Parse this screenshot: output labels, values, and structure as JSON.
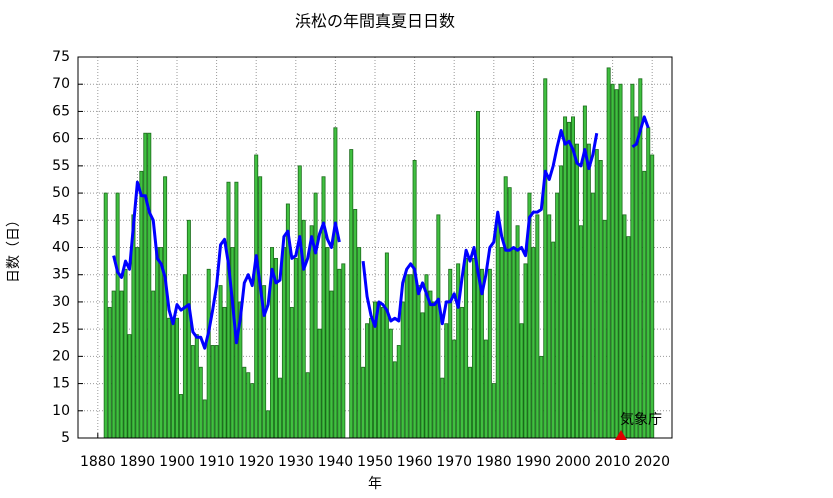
{
  "chart_data": {
    "type": "bar_line",
    "title": "浜松の年間真夏日日数",
    "xlabel": "年",
    "ylabel": "日数（日）",
    "annotation": "気象庁",
    "x": [
      1882,
      1883,
      1884,
      1885,
      1886,
      1887,
      1888,
      1889,
      1890,
      1891,
      1892,
      1893,
      1894,
      1895,
      1896,
      1897,
      1898,
      1899,
      1900,
      1901,
      1902,
      1903,
      1904,
      1905,
      1906,
      1907,
      1908,
      1909,
      1910,
      1911,
      1912,
      1913,
      1914,
      1915,
      1916,
      1917,
      1918,
      1919,
      1920,
      1921,
      1922,
      1923,
      1924,
      1925,
      1926,
      1927,
      1928,
      1929,
      1930,
      1931,
      1932,
      1933,
      1934,
      1935,
      1936,
      1937,
      1938,
      1939,
      1940,
      1941,
      1942,
      1943,
      1944,
      1945,
      1946,
      1947,
      1948,
      1949,
      1950,
      1951,
      1952,
      1953,
      1954,
      1955,
      1956,
      1957,
      1958,
      1959,
      1960,
      1961,
      1962,
      1963,
      1964,
      1965,
      1966,
      1967,
      1968,
      1969,
      1970,
      1971,
      1972,
      1973,
      1974,
      1975,
      1976,
      1977,
      1978,
      1979,
      1980,
      1981,
      1982,
      1983,
      1984,
      1985,
      1986,
      1987,
      1988,
      1989,
      1990,
      1991,
      1992,
      1993,
      1994,
      1995,
      1996,
      1997,
      1998,
      1999,
      2000,
      2001,
      2002,
      2003,
      2004,
      2005,
      2006,
      2007,
      2008,
      2009,
      2010,
      2011,
      2012,
      2013,
      2014,
      2015,
      2016,
      2017,
      2018,
      2019,
      2020
    ],
    "series": [
      {
        "kind": "bar",
        "color": "#40c040",
        "values": [
          50,
          29,
          32,
          50,
          32,
          36,
          24,
          46,
          40,
          54,
          61,
          61,
          32,
          40,
          40,
          53,
          27,
          27,
          27,
          13,
          35,
          45,
          22,
          24,
          18,
          12,
          36,
          22,
          22,
          33,
          29,
          52,
          40,
          52,
          30,
          18,
          17,
          15,
          57,
          53,
          33,
          10,
          40,
          38,
          16,
          40,
          48,
          29,
          38,
          55,
          45,
          17,
          44,
          50,
          25,
          53,
          40,
          32,
          62,
          36,
          37,
          null,
          58,
          47,
          40,
          18,
          26,
          27,
          30,
          30,
          29,
          39,
          25,
          19,
          22,
          30,
          35,
          35,
          56,
          33,
          28,
          35,
          32,
          30,
          46,
          16,
          26,
          36,
          23,
          37,
          29,
          38,
          18,
          38,
          65,
          36,
          23,
          36,
          15,
          45,
          40,
          53,
          51,
          40,
          44,
          26,
          37,
          50,
          40,
          46,
          20,
          71,
          46,
          41,
          50,
          55,
          64,
          63,
          64,
          59,
          44,
          66,
          59,
          50,
          58,
          56,
          45,
          73,
          70,
          69,
          70,
          46,
          42,
          70,
          64,
          71,
          54,
          62,
          57
        ]
      },
      {
        "kind": "line",
        "color": "#0000ff",
        "values": [
          null,
          null,
          38.5,
          35.5,
          34.5,
          37.5,
          36,
          44,
          52,
          49.5,
          49.5,
          46.5,
          45,
          38,
          37,
          34.5,
          28.5,
          26,
          29.5,
          28.5,
          29,
          29.5,
          24.5,
          23.5,
          23.5,
          21.5,
          24.5,
          28.5,
          33,
          40.5,
          41.5,
          37,
          30,
          22.5,
          27,
          33.5,
          35,
          33,
          38.5,
          33,
          27.5,
          29.5,
          36,
          33.5,
          34,
          42,
          43,
          38,
          38.5,
          42,
          36,
          38,
          42,
          39,
          42.5,
          44.5,
          41.5,
          40,
          44.5,
          41,
          null,
          null,
          null,
          null,
          null,
          37.5,
          31,
          27.5,
          25.5,
          30,
          29.5,
          28.5,
          26.5,
          27,
          26.5,
          33.5,
          36,
          37,
          36,
          31.5,
          33.5,
          31.5,
          29.5,
          29.5,
          30.5,
          26,
          30,
          30,
          31.5,
          29,
          34.5,
          39.5,
          37.5,
          40,
          35.5,
          31.5,
          35,
          40,
          41,
          46.5,
          42,
          39.5,
          39.5,
          40,
          39.5,
          40,
          38.5,
          45.5,
          46.5,
          46.5,
          47,
          54,
          52.5,
          55,
          58.5,
          61.5,
          59,
          59.5,
          58,
          55.5,
          55,
          58,
          54.5,
          57,
          61,
          null,
          null,
          null,
          null,
          null,
          null,
          null,
          null,
          58.5,
          59,
          61.5,
          64,
          62,
          null
        ]
      }
    ],
    "xlim": [
      1875,
      2025
    ],
    "xticks": [
      1880,
      1890,
      1900,
      1910,
      1920,
      1930,
      1940,
      1950,
      1960,
      1970,
      1980,
      1990,
      2000,
      2010,
      2020
    ],
    "ylim": [
      5,
      75
    ],
    "yticks": [
      5,
      10,
      15,
      20,
      25,
      30,
      35,
      40,
      45,
      50,
      55,
      60,
      65,
      70,
      75
    ],
    "grid": true
  }
}
